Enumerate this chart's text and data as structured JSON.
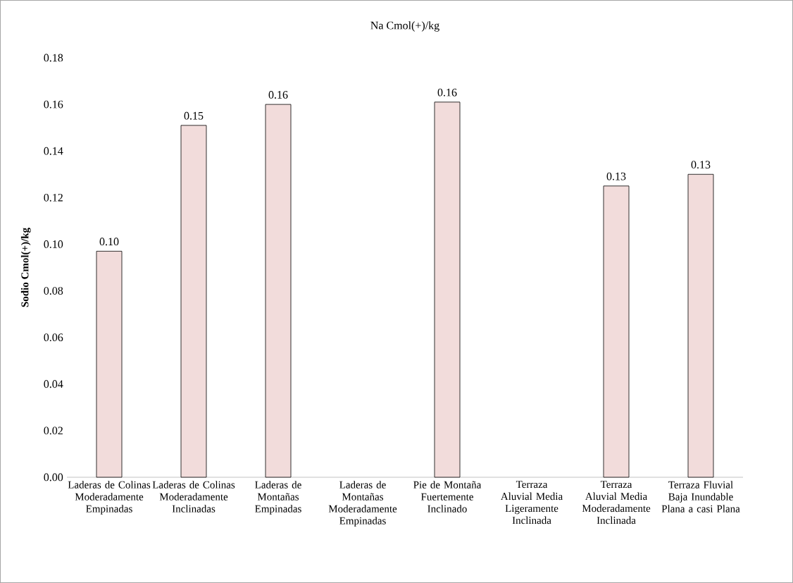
{
  "chart_data": {
    "type": "bar",
    "title": "Na Cmol(+)/kg",
    "ylabel": "Sodio Cmol(+)/kg",
    "categories": [
      "Laderas de Colinas Moderadamente Empinadas",
      "Laderas de Colinas Moderadamente Inclinadas",
      "Laderas de Montañas Empinadas",
      "Laderas de Montañas Moderadamente Empinadas",
      "Pie de Montaña Fuertemente Inclinado",
      "Terraza Aluvial Media Ligeramente Inclinada",
      "Terraza Aluvial Media Moderadamente Inclinada",
      "Terraza Fluvial Baja Inundable Plana a casi Plana"
    ],
    "values": [
      0.097,
      0.151,
      0.16,
      null,
      0.161,
      null,
      0.125,
      0.13
    ],
    "value_labels": [
      "0.10",
      "0.15",
      "0.16",
      null,
      "0.16",
      null,
      "0.13",
      "0.13"
    ],
    "color": "#f2dcdb",
    "ylim": [
      0,
      0.18
    ],
    "yticks": [
      {
        "value": 0,
        "label": "0.00"
      },
      {
        "value": 0.02,
        "label": "0.02"
      },
      {
        "value": 0.04,
        "label": "0.04"
      },
      {
        "value": 0.06,
        "label": "0.06"
      },
      {
        "value": 0.08,
        "label": "0.08"
      },
      {
        "value": 0.1,
        "label": "0.10"
      },
      {
        "value": 0.12,
        "label": "0.12"
      },
      {
        "value": 0.14,
        "label": "0.14"
      },
      {
        "value": 0.16,
        "label": "0.16"
      },
      {
        "value": 0.18,
        "label": "0.18"
      }
    ]
  }
}
